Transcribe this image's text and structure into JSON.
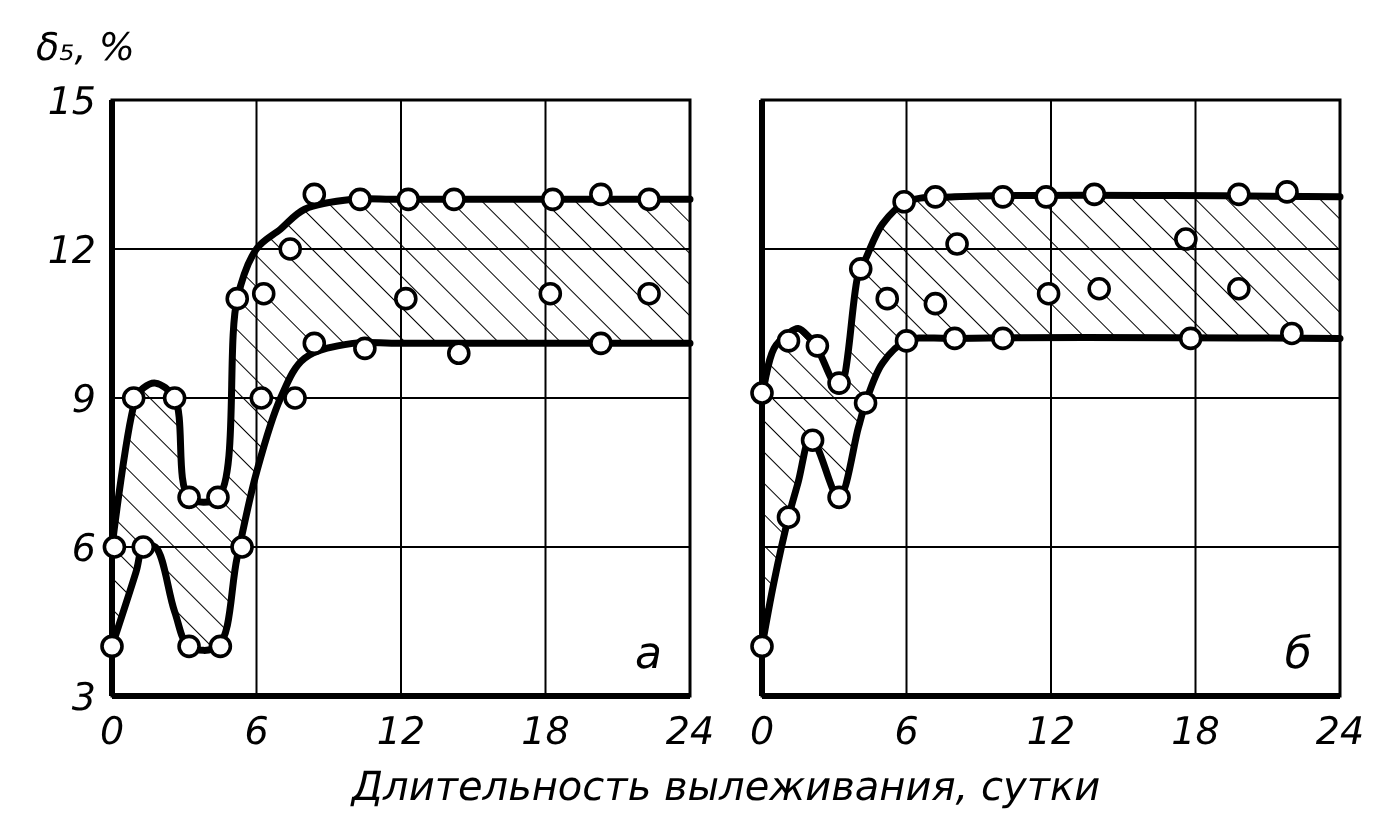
{
  "chart_data": [
    {
      "type": "line",
      "ylabel": "δ₅, %",
      "xlabel": "Длительность вылеживания, сутки",
      "annotations": [
        "а"
      ],
      "xlim": [
        0,
        24
      ],
      "xticks": [
        0,
        6,
        12,
        18,
        24
      ],
      "ylim": [
        3,
        15
      ],
      "yticks": [
        3,
        6,
        9,
        12,
        15
      ],
      "grid": true,
      "series": [
        {
          "color": "#000000",
          "marker": "none",
          "x": [
            0,
            1,
            1.3,
            1.8,
            2.6,
            3.2,
            4.4,
            5.2,
            6,
            7,
            8,
            10,
            12,
            24
          ],
          "values": [
            6,
            9,
            9.2,
            9.3,
            9,
            7,
            7,
            11,
            12,
            12.4,
            12.8,
            13,
            13,
            13
          ],
          "lower": [
            4,
            5.5,
            6,
            6,
            4.7,
            4,
            4,
            5.8,
            7.5,
            9,
            9.8,
            10.1,
            10.1,
            10.1
          ],
          "upper": [
            6,
            9,
            9.2,
            9.3,
            9,
            7,
            7,
            11,
            12,
            12.4,
            12.8,
            13,
            13,
            13
          ]
        },
        {
          "color": "#000000",
          "marker": "none",
          "x": [
            0,
            1,
            1.3,
            1.8,
            2.6,
            3.2,
            4.4,
            5.2,
            6,
            7,
            8,
            10,
            12,
            24
          ],
          "values": [
            4,
            5.5,
            6,
            6,
            4.7,
            4,
            4,
            5.8,
            7.5,
            9,
            9.8,
            10.1,
            10.1,
            10.1
          ]
        },
        {
          "type": "scatter",
          "color": "#000000",
          "marker": "circle",
          "x": [
            0.1,
            0.9,
            2.6,
            3.2,
            4.4,
            5.2,
            6.3,
            7.4,
            8.4,
            10.3,
            12.3,
            14.2,
            18.3,
            20.3,
            22.3,
            0,
            1.3,
            3.2,
            4.5,
            5.4,
            6.2,
            7.6,
            8.4,
            10.5,
            14.4,
            20.3,
            12.2,
            18.2,
            22.3
          ],
          "values": [
            6,
            9,
            9,
            7,
            7,
            11,
            11.1,
            12,
            13.1,
            13,
            13,
            13,
            13,
            13.1,
            13,
            4,
            6,
            4,
            4,
            6,
            9,
            9,
            10.1,
            10,
            9.9,
            10.1,
            11,
            11.1,
            11.1
          ]
        }
      ]
    },
    {
      "type": "line",
      "annotations": [
        "б"
      ],
      "xlim": [
        0,
        24
      ],
      "xticks": [
        0,
        6,
        12,
        18,
        24
      ],
      "ylim": [
        3,
        15
      ],
      "yticks": [
        3,
        6,
        9,
        12,
        15
      ],
      "tick_labels": "x",
      "grid": true,
      "series": [
        {
          "color": "#000000",
          "marker": "none",
          "x": [
            0,
            0.5,
            1.1,
            1.5,
            2,
            2.3,
            3.2,
            4,
            4.3,
            5,
            6,
            8,
            24
          ],
          "values": [
            9,
            10,
            10.3,
            10.4,
            10.2,
            10,
            9.2,
            11.5,
            11.8,
            12.5,
            12.95,
            13.05,
            13.05
          ],
          "lower": [
            4,
            5.3,
            6.6,
            7.3,
            8.2,
            8,
            7,
            8.4,
            8.9,
            9.7,
            10.15,
            10.2,
            10.2
          ],
          "upper": [
            9,
            10,
            10.3,
            10.4,
            10.2,
            10,
            9.2,
            11.5,
            11.8,
            12.5,
            12.95,
            13.05,
            13.05
          ]
        },
        {
          "color": "#000000",
          "marker": "none",
          "x": [
            0,
            0.5,
            1.1,
            1.5,
            2,
            2.3,
            3.2,
            4,
            4.3,
            5,
            6,
            8,
            24
          ],
          "values": [
            4,
            5.3,
            6.6,
            7.3,
            8.2,
            8,
            7,
            8.4,
            8.9,
            9.7,
            10.15,
            10.2,
            10.2
          ]
        },
        {
          "type": "scatter",
          "color": "#000000",
          "marker": "circle",
          "x": [
            0,
            1.1,
            2.3,
            3.2,
            4.1,
            5.9,
            7.2,
            10,
            11.8,
            13.8,
            19.8,
            21.8,
            0,
            1.1,
            2.1,
            3.2,
            4.3,
            6,
            8,
            10,
            17.8,
            22,
            5.2,
            7.2,
            8.1,
            11.9,
            14,
            17.6,
            19.8
          ],
          "values": [
            9.1,
            10.15,
            10.05,
            9.3,
            11.6,
            12.95,
            13.05,
            13.05,
            13.05,
            13.1,
            13.1,
            13.15,
            4,
            6.6,
            8.15,
            7,
            8.9,
            10.15,
            10.2,
            10.2,
            10.2,
            10.3,
            11,
            10.9,
            12.1,
            11.1,
            11.2,
            12.2,
            11.2
          ]
        }
      ]
    }
  ]
}
